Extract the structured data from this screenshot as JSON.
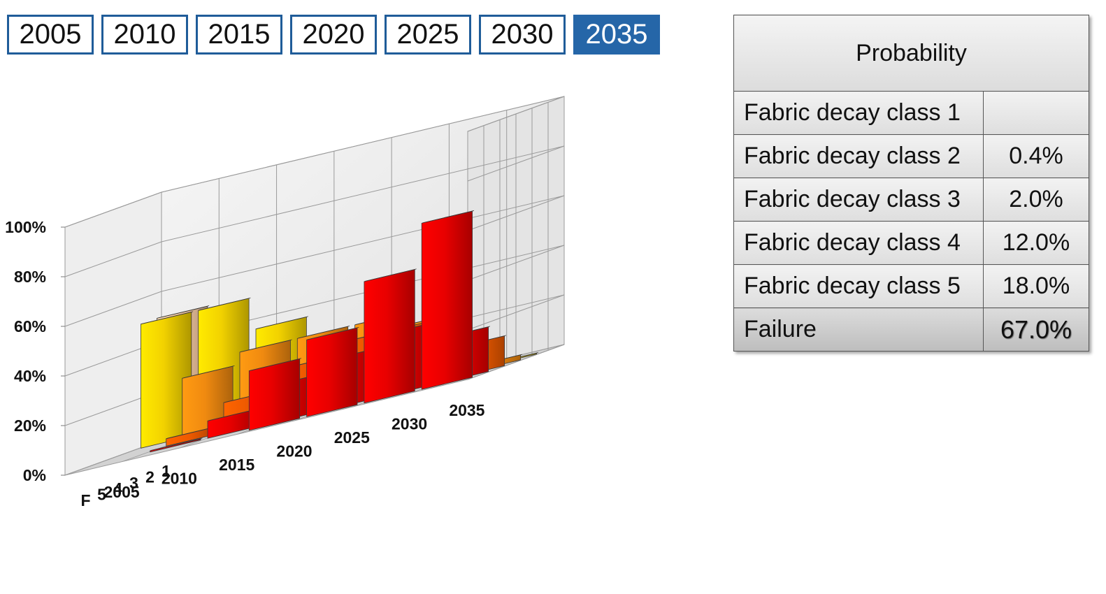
{
  "tabs": [
    {
      "label": "2005",
      "active": false
    },
    {
      "label": "2010",
      "active": false
    },
    {
      "label": "2015",
      "active": false
    },
    {
      "label": "2020",
      "active": false
    },
    {
      "label": "2025",
      "active": false
    },
    {
      "label": "2030",
      "active": false
    },
    {
      "label": "2035",
      "active": true
    }
  ],
  "probability_table": {
    "header": "Probability",
    "rows": [
      {
        "label": "Fabric decay class 1",
        "value": ""
      },
      {
        "label": "Fabric decay class 2",
        "value": "0.4%"
      },
      {
        "label": "Fabric decay class 3",
        "value": "2.0%"
      },
      {
        "label": "Fabric decay class 4",
        "value": "12.0%"
      },
      {
        "label": "Fabric decay class 5",
        "value": "18.0%"
      },
      {
        "label": "Failure",
        "value": "67.0%"
      }
    ]
  },
  "colors": {
    "tab_border": "#1f5c99",
    "tab_active": "#2566a8",
    "class_colors": [
      "#f3c9a3",
      "#f2d200",
      "#f08a10",
      "#ee5a00",
      "#e60000",
      "#e80000"
    ]
  },
  "chart_data": {
    "type": "bar",
    "projection": "3d",
    "title": "",
    "categories": [
      "1",
      "2",
      "3",
      "4",
      "5",
      "F"
    ],
    "x": [
      "2005",
      "2010",
      "2015",
      "2020",
      "2025",
      "2030",
      "2035"
    ],
    "ylabel": "",
    "ylim": [
      0,
      100
    ],
    "yticks": [
      "0%",
      "20%",
      "40%",
      "60%",
      "80%",
      "100%"
    ],
    "grid": true,
    "series": [
      {
        "values": [
          50,
          50,
          0,
          0,
          0,
          0
        ]
      },
      {
        "values": [
          25,
          50,
          25,
          3,
          0.5,
          0
        ]
      },
      {
        "values": [
          13,
          37,
          30,
          12,
          7,
          0
        ]
      },
      {
        "values": [
          6,
          25,
          30,
          20,
          15,
          24
        ]
      },
      {
        "values": [
          3,
          15,
          30,
          25,
          20,
          31
        ]
      },
      {
        "values": [
          1,
          8,
          25,
          25,
          25,
          49
        ]
      },
      {
        "values": [
          0,
          0.4,
          2,
          12,
          18,
          67
        ]
      }
    ]
  }
}
